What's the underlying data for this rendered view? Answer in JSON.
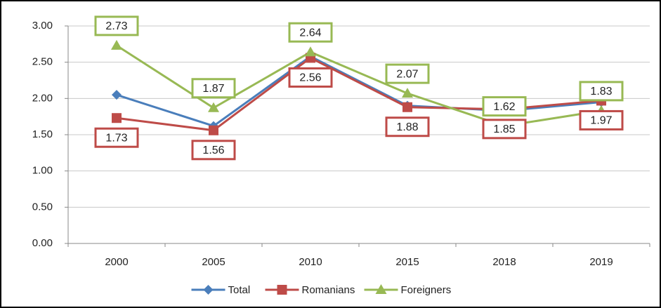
{
  "chart_data": {
    "type": "line",
    "categories": [
      "2000",
      "2005",
      "2010",
      "2015",
      "2018",
      "2019"
    ],
    "series": [
      {
        "name": "Total",
        "color": "#4a7ebb",
        "marker": "diamond",
        "values": [
          2.05,
          1.62,
          2.58,
          1.9,
          1.83,
          1.95
        ]
      },
      {
        "name": "Romanians",
        "color": "#be4b48",
        "marker": "square",
        "values": [
          1.73,
          1.56,
          2.56,
          1.88,
          1.85,
          1.97
        ],
        "labels": true,
        "label_side": "below"
      },
      {
        "name": "Foreigners",
        "color": "#98b954",
        "marker": "triangle",
        "values": [
          2.73,
          1.87,
          2.64,
          2.07,
          1.62,
          1.83
        ],
        "labels": true,
        "label_side": "above"
      }
    ],
    "ylim": [
      0,
      3
    ],
    "yticks": [
      {
        "value": 0,
        "label": "0.00"
      },
      {
        "value": 0.5,
        "label": "0.50"
      },
      {
        "value": 1,
        "label": "1.00"
      },
      {
        "value": 1.5,
        "label": "1.50"
      },
      {
        "value": 2,
        "label": "2.00"
      },
      {
        "value": 2.5,
        "label": "2.50"
      },
      {
        "value": 3,
        "label": "3.00"
      }
    ],
    "grid": true,
    "legend": "bottom"
  }
}
